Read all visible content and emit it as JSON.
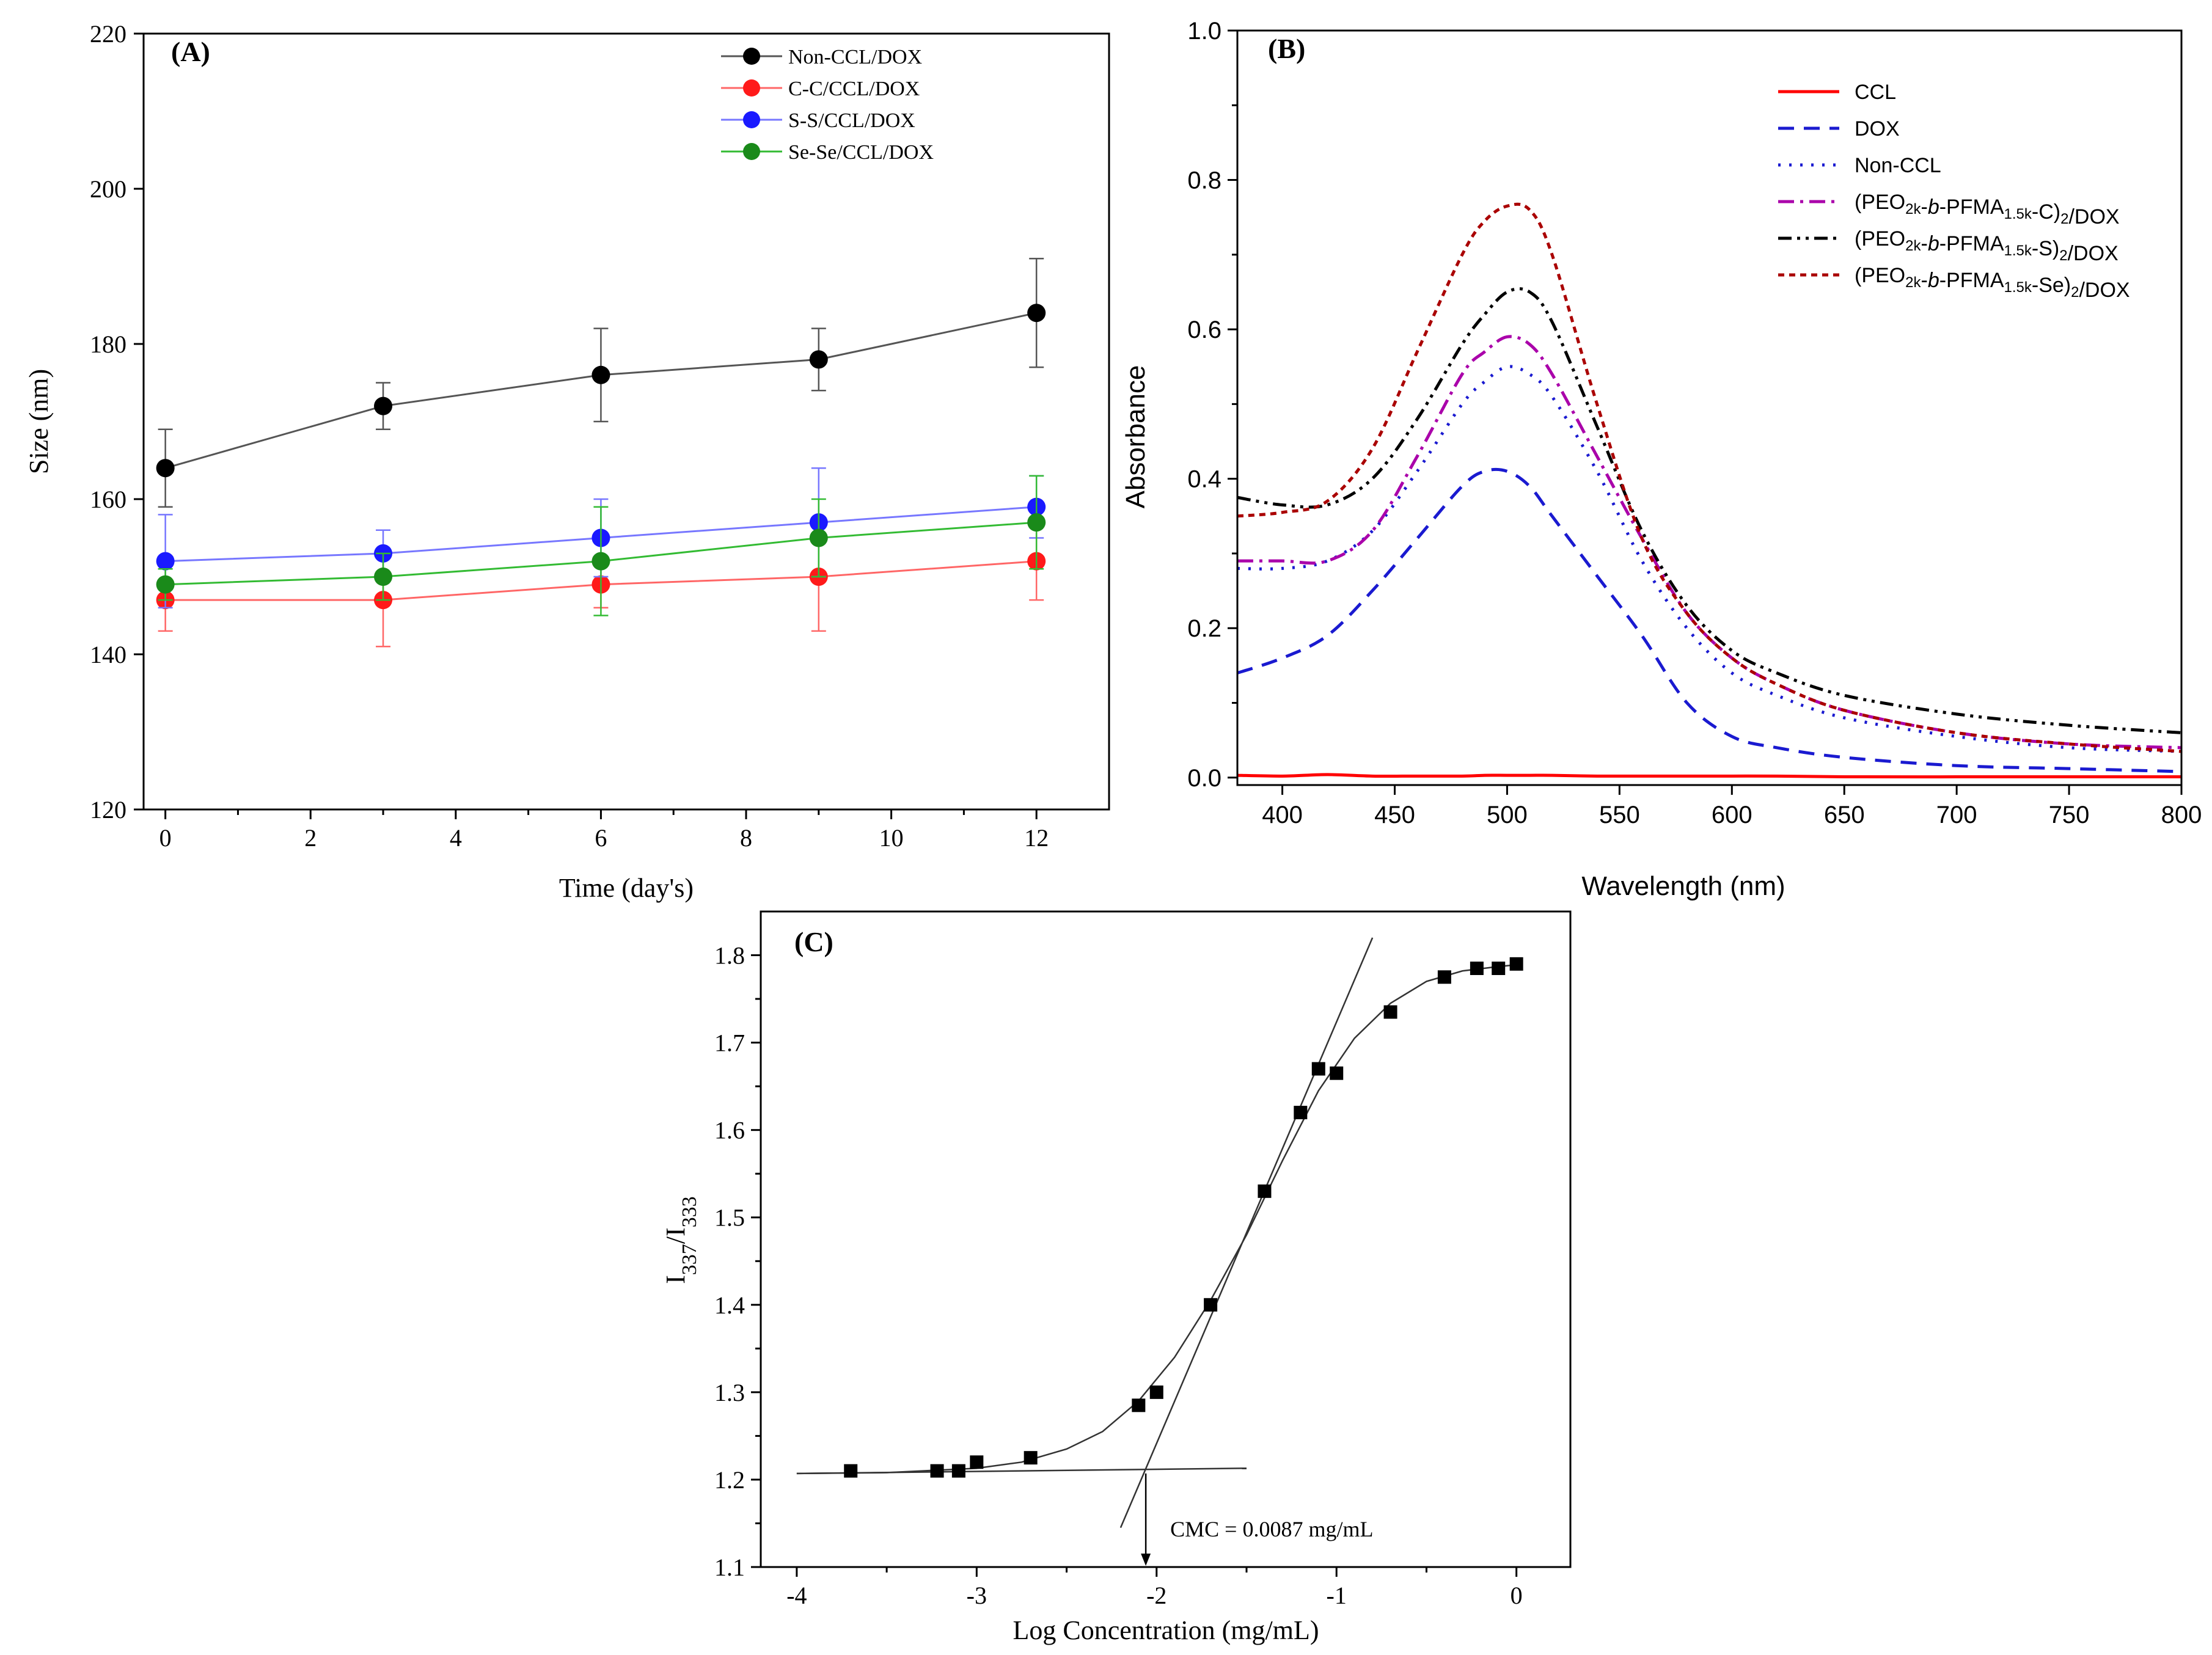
{
  "chart_data": [
    {
      "panel": "(A)",
      "type": "line",
      "xlabel": "Time (day's)",
      "ylabel": "Size (nm)",
      "xlim": [
        -0.3,
        13
      ],
      "ylim": [
        120,
        220
      ],
      "xticks": [
        0,
        2,
        4,
        6,
        8,
        10,
        12
      ],
      "yticks": [
        120,
        140,
        160,
        180,
        200,
        220
      ],
      "x": [
        0,
        3,
        6,
        9,
        12
      ],
      "legend_position": "top-right",
      "series": [
        {
          "name": "Non-CCL/DOX",
          "color": "#000000",
          "line_color": "#555555",
          "values": [
            164,
            172,
            176,
            178,
            184
          ],
          "errors": [
            5,
            3,
            6,
            4,
            7
          ]
        },
        {
          "name": "C-C/CCL/DOX",
          "color": "#ff1a1a",
          "line_color": "#ff6666",
          "values": [
            147,
            147,
            149,
            150,
            152
          ],
          "errors": [
            4,
            6,
            3,
            7,
            5
          ]
        },
        {
          "name": "S-S/CCL/DOX",
          "color": "#1a1aff",
          "line_color": "#7777ff",
          "values": [
            152,
            153,
            155,
            157,
            159
          ],
          "errors": [
            6,
            3,
            5,
            7,
            4
          ]
        },
        {
          "name": "Se-Se/CCL/DOX",
          "color": "#1a8a1a",
          "line_color": "#33bb33",
          "values": [
            149,
            150,
            152,
            155,
            157
          ],
          "errors": [
            2,
            3,
            7,
            5,
            6
          ]
        }
      ]
    },
    {
      "panel": "(B)",
      "type": "line",
      "xlabel": "Wavelength (nm)",
      "ylabel": "Absorbance",
      "xlim": [
        380,
        800
      ],
      "ylim": [
        -0.01,
        1.0
      ],
      "xticks": [
        400,
        450,
        500,
        550,
        600,
        650,
        700,
        750,
        800
      ],
      "yticks": [
        0.0,
        0.2,
        0.4,
        0.6,
        0.8,
        1.0
      ],
      "ytick_labels": [
        "0.0",
        "0.2",
        "0.4",
        "0.6",
        "0.8",
        "1.0"
      ],
      "legend_position": "top-right",
      "x": [
        380,
        400,
        420,
        440,
        460,
        480,
        490,
        500,
        510,
        520,
        540,
        560,
        580,
        600,
        620,
        650,
        700,
        750,
        800
      ],
      "series": [
        {
          "name": "CCL",
          "color": "#ff0000",
          "dash": "solid",
          "values": [
            0.003,
            0.002,
            0.004,
            0.002,
            0.002,
            0.002,
            0.003,
            0.003,
            0.003,
            0.003,
            0.002,
            0.002,
            0.002,
            0.002,
            0.002,
            0.001,
            0.001,
            0.001,
            0.001
          ]
        },
        {
          "name": "DOX",
          "color": "#1a1ad0",
          "dash": "dashed",
          "values": [
            0.14,
            0.16,
            0.19,
            0.25,
            0.32,
            0.39,
            0.41,
            0.41,
            0.39,
            0.35,
            0.27,
            0.19,
            0.1,
            0.055,
            0.04,
            0.027,
            0.016,
            0.012,
            0.008
          ]
        },
        {
          "name": "Non-CCL",
          "color": "#1a1ad0",
          "dash": "dotted",
          "values": [
            0.28,
            0.28,
            0.29,
            0.33,
            0.41,
            0.5,
            0.53,
            0.55,
            0.54,
            0.51,
            0.41,
            0.29,
            0.2,
            0.14,
            0.11,
            0.08,
            0.055,
            0.04,
            0.035
          ]
        },
        {
          "name": "(PEO2k-b-PFMA1.5k-C)2/DOX",
          "color": "#aa00aa",
          "dash": "dashdot",
          "values": [
            0.29,
            0.29,
            0.29,
            0.33,
            0.43,
            0.54,
            0.57,
            0.59,
            0.58,
            0.54,
            0.43,
            0.32,
            0.22,
            0.16,
            0.125,
            0.09,
            0.06,
            0.045,
            0.04
          ]
        },
        {
          "name": "(PEO2k-b-PFMA1.5k-S)2/DOX",
          "color": "#000000",
          "dash": "dashdotdot",
          "values": [
            0.375,
            0.365,
            0.365,
            0.4,
            0.48,
            0.58,
            0.62,
            0.65,
            0.65,
            0.61,
            0.47,
            0.33,
            0.23,
            0.17,
            0.14,
            0.11,
            0.085,
            0.07,
            0.06
          ]
        },
        {
          "name": "(PEO2k-b-PFMA1.5k-Se)2/DOX",
          "color": "#aa0000",
          "dash": "shortdash",
          "values": [
            0.35,
            0.355,
            0.37,
            0.44,
            0.57,
            0.7,
            0.745,
            0.765,
            0.76,
            0.7,
            0.5,
            0.32,
            0.22,
            0.16,
            0.125,
            0.09,
            0.06,
            0.045,
            0.035
          ]
        }
      ]
    },
    {
      "panel": "(C)",
      "type": "scatter",
      "xlabel": "Log Concentration (mg/mL)",
      "ylabel_main": "I",
      "ylabel_sub1": "337",
      "ylabel_sep": "/I",
      "ylabel_sub2": "333",
      "xlim": [
        -4.2,
        0.3
      ],
      "ylim": [
        1.1,
        1.85
      ],
      "xticks": [
        -4,
        -3,
        -2,
        -1,
        0
      ],
      "yticks": [
        1.1,
        1.2,
        1.3,
        1.4,
        1.5,
        1.6,
        1.7,
        1.8
      ],
      "ytick_labels": [
        "1.1",
        "1.2",
        "1.3",
        "1.4",
        "1.5",
        "1.6",
        "1.7",
        "1.8"
      ],
      "points": {
        "x": [
          -3.7,
          -3.22,
          -3.1,
          -3.0,
          -2.7,
          -2.1,
          -2.0,
          -1.7,
          -1.4,
          -1.2,
          -1.1,
          -1.0,
          -0.7,
          -0.4,
          -0.22,
          -0.1,
          0.0
        ],
        "y": [
          1.21,
          1.21,
          1.21,
          1.22,
          1.225,
          1.285,
          1.3,
          1.4,
          1.53,
          1.62,
          1.67,
          1.665,
          1.735,
          1.775,
          1.785,
          1.785,
          1.79
        ]
      },
      "fit_curve": {
        "x": [
          -4.0,
          -3.5,
          -3.0,
          -2.75,
          -2.5,
          -2.3,
          -2.1,
          -1.9,
          -1.7,
          -1.5,
          -1.3,
          -1.1,
          -0.9,
          -0.7,
          -0.5,
          -0.3,
          -0.1,
          0.0
        ],
        "y": [
          1.207,
          1.208,
          1.213,
          1.22,
          1.235,
          1.255,
          1.29,
          1.34,
          1.405,
          1.48,
          1.565,
          1.645,
          1.705,
          1.745,
          1.77,
          1.782,
          1.787,
          1.789
        ]
      },
      "baseline": {
        "x": [
          -4.0,
          -1.5
        ],
        "y": [
          1.207,
          1.213
        ]
      },
      "tangent": {
        "x": [
          -2.2,
          -0.8
        ],
        "y": [
          1.145,
          1.82
        ]
      },
      "cmc_x": -2.06,
      "cmc_label": "CMC = 0.0087 mg/mL"
    }
  ]
}
